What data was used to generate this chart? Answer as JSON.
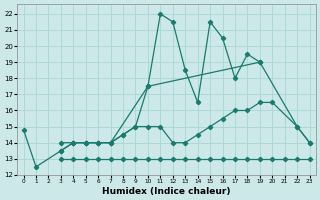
{
  "xlabel": "Humidex (Indice chaleur)",
  "background_color": "#cce8e8",
  "grid_color": "#a8d5d5",
  "line_color": "#1a7a6e",
  "xlim": [
    -0.5,
    23.5
  ],
  "ylim": [
    12,
    22.6
  ],
  "xticks": [
    0,
    1,
    2,
    3,
    4,
    5,
    6,
    7,
    8,
    9,
    10,
    11,
    12,
    13,
    14,
    15,
    16,
    17,
    18,
    19,
    20,
    21,
    22,
    23
  ],
  "yticks": [
    12,
    13,
    14,
    15,
    16,
    17,
    18,
    19,
    20,
    21,
    22
  ],
  "lines": [
    {
      "x": [
        3,
        4,
        5,
        6,
        7,
        8,
        9,
        10,
        11,
        12,
        13,
        14,
        15,
        16,
        17,
        18,
        19,
        20,
        21,
        22,
        23
      ],
      "y": [
        13,
        13,
        13,
        13,
        13,
        13,
        13,
        13,
        13,
        13,
        13,
        13,
        13,
        13,
        13,
        13,
        13,
        13,
        13,
        13,
        13
      ]
    },
    {
      "x": [
        3,
        4,
        5,
        6,
        7,
        8,
        9,
        10,
        11,
        12,
        13,
        14,
        15,
        16,
        17,
        18,
        19,
        20,
        22,
        23
      ],
      "y": [
        14,
        14,
        14,
        14,
        14,
        14.5,
        15,
        15,
        15,
        14,
        14,
        14.5,
        15,
        15.5,
        16,
        16,
        16.5,
        16.5,
        15,
        14
      ]
    },
    {
      "x": [
        3,
        4,
        5,
        6,
        7,
        8,
        9,
        10,
        19
      ],
      "y": [
        13.5,
        14,
        14,
        14,
        14,
        14.5,
        15,
        17.5,
        19
      ]
    },
    {
      "x": [
        0,
        1,
        3,
        4,
        5,
        6,
        7,
        10,
        11,
        12,
        13,
        14,
        15,
        16,
        17,
        18,
        19,
        22,
        23
      ],
      "y": [
        14.8,
        12.5,
        13.5,
        14,
        14,
        14,
        14,
        17.5,
        22,
        21.5,
        18.5,
        16.5,
        21.5,
        20.5,
        18,
        19.5,
        19,
        15,
        14
      ]
    }
  ]
}
